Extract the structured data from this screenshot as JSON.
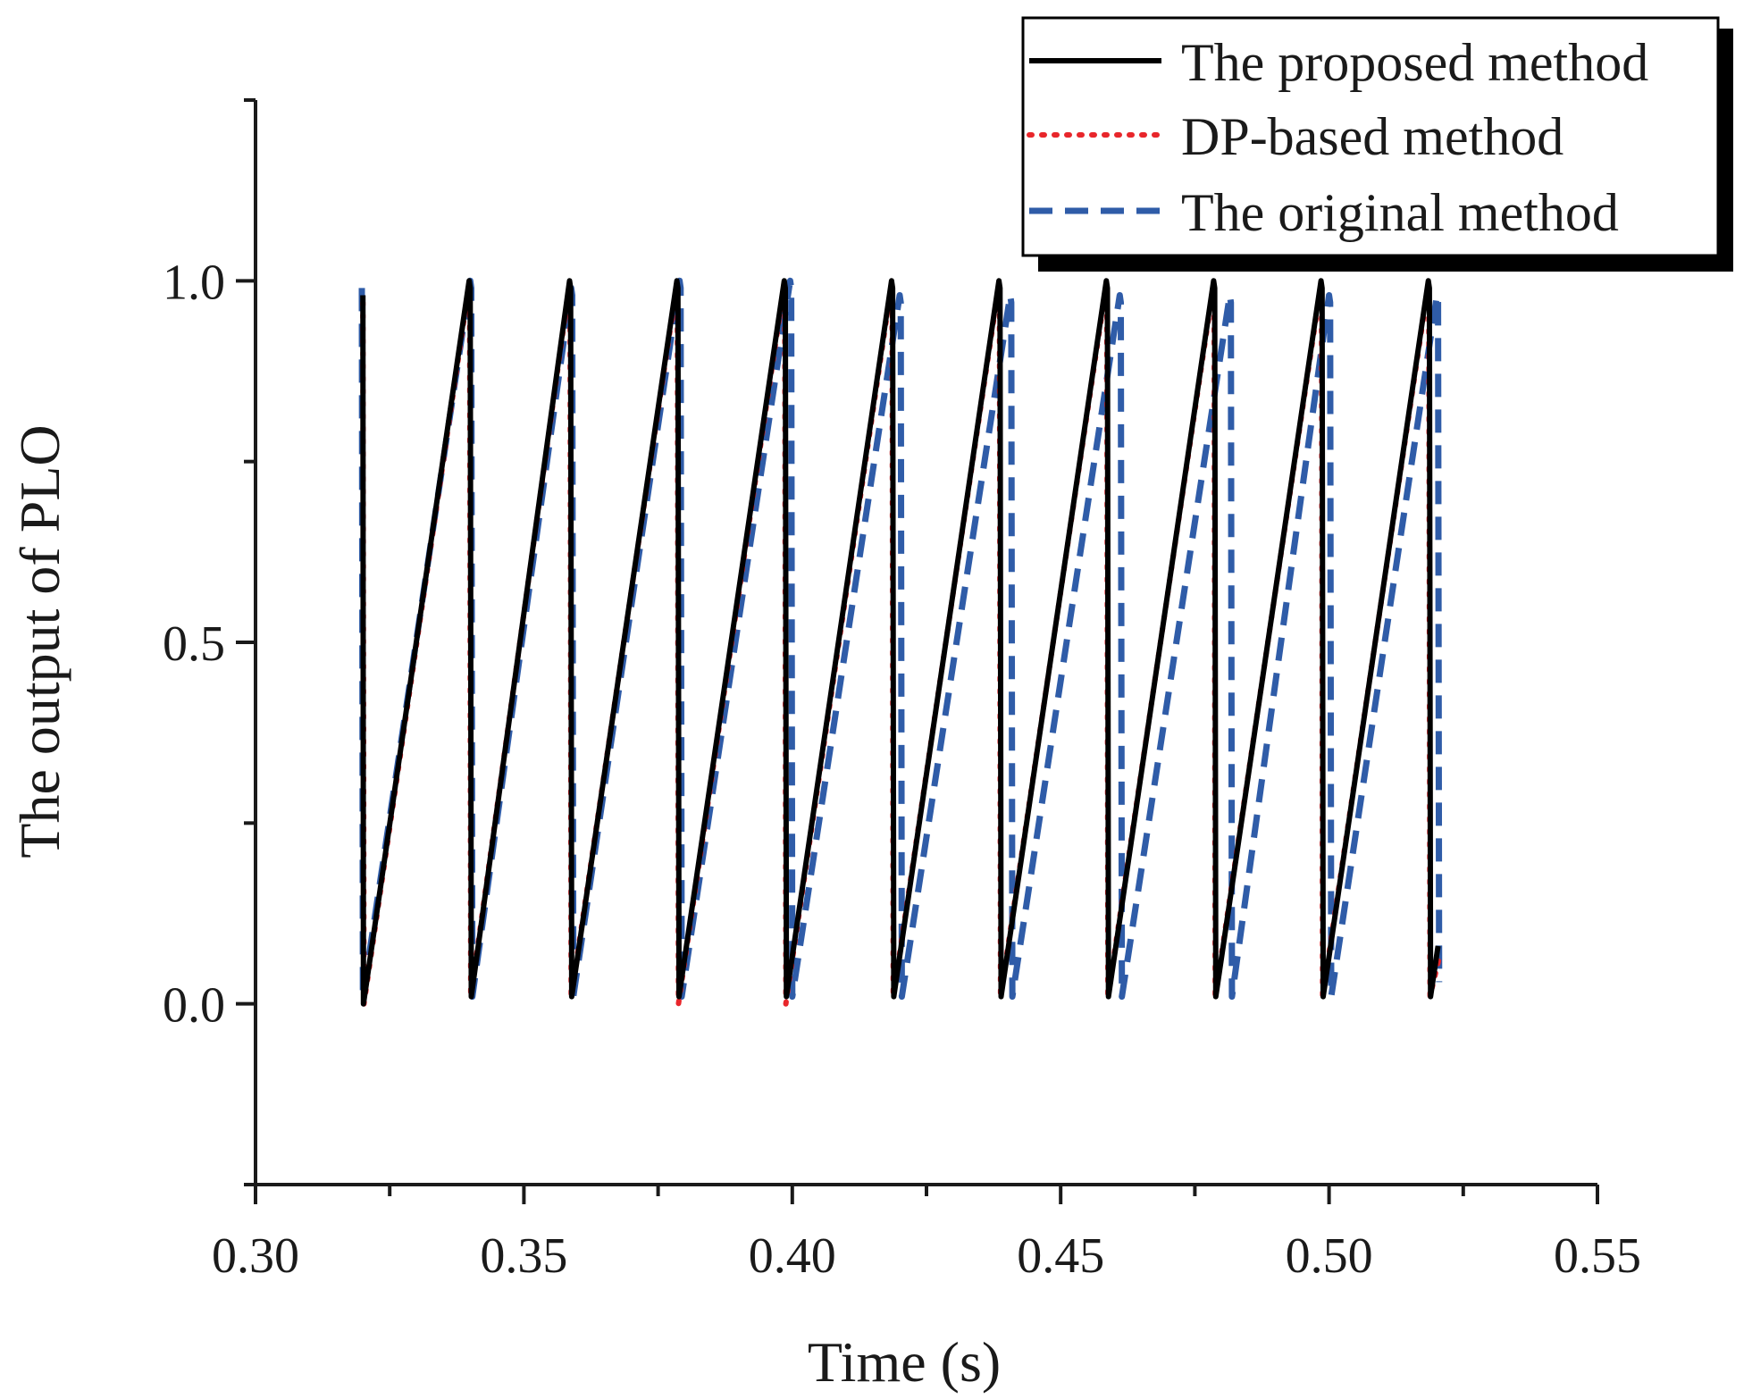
{
  "chart_data": {
    "type": "line",
    "title": "",
    "xlabel": "Time (s)",
    "ylabel": "The output of PLO",
    "xlim": [
      0.3,
      0.55
    ],
    "ylim": [
      -0.25,
      1.25
    ],
    "x_ticks": [
      0.3,
      0.35,
      0.4,
      0.45,
      0.5,
      0.55
    ],
    "x_tick_labels": [
      "0.30",
      "0.35",
      "0.40",
      "0.45",
      "0.50",
      "0.55"
    ],
    "x_minor_ticks": [
      0.325,
      0.375,
      0.425,
      0.475,
      0.525
    ],
    "y_ticks": [
      0.0,
      0.5,
      1.0
    ],
    "y_tick_labels": [
      "0.0",
      "0.5",
      "1.0"
    ],
    "y_minor_ticks": [
      -0.25,
      0.25,
      0.75,
      1.25
    ],
    "grid": false,
    "legend_position": "top-right",
    "series": [
      {
        "name": "The proposed method",
        "color": "#000000",
        "style": "solid",
        "x": [
          0.32,
          0.3201,
          0.3398,
          0.34,
          0.3402,
          0.3585,
          0.3587,
          0.3589,
          0.3785,
          0.3787,
          0.3789,
          0.3985,
          0.3987,
          0.3989,
          0.4185,
          0.4187,
          0.4189,
          0.4385,
          0.4387,
          0.4389,
          0.4585,
          0.4587,
          0.4589,
          0.4785,
          0.4787,
          0.4789,
          0.4985,
          0.4987,
          0.4989,
          0.5185,
          0.5187,
          0.5189,
          0.5203
        ],
        "y": [
          0.98,
          0.0,
          1.0,
          0.99,
          0.01,
          1.0,
          0.99,
          0.01,
          1.0,
          0.99,
          0.01,
          1.0,
          0.99,
          0.01,
          1.0,
          0.99,
          0.01,
          1.0,
          0.99,
          0.01,
          1.0,
          0.99,
          0.01,
          1.0,
          0.99,
          0.01,
          1.0,
          0.99,
          0.01,
          1.0,
          0.99,
          0.01,
          0.08
        ]
      },
      {
        "name": "DP-based method",
        "color": "#e8262b",
        "style": "dotted",
        "x": [
          0.32,
          0.3202,
          0.3397,
          0.3399,
          0.3401,
          0.3584,
          0.3586,
          0.3588,
          0.3784,
          0.3786,
          0.3788,
          0.3984,
          0.3986,
          0.3988,
          0.4184,
          0.4186,
          0.4188,
          0.4384,
          0.4386,
          0.4388,
          0.4584,
          0.4586,
          0.4588,
          0.4784,
          0.4786,
          0.4788,
          0.4984,
          0.4986,
          0.4988,
          0.5184,
          0.5186,
          0.5188,
          0.5204
        ],
        "y": [
          0.97,
          0.0,
          0.99,
          0.98,
          0.01,
          0.99,
          0.98,
          0.01,
          0.99,
          0.98,
          0.0,
          0.99,
          0.98,
          0.0,
          0.99,
          0.98,
          0.01,
          0.99,
          0.98,
          0.01,
          0.99,
          0.98,
          0.01,
          0.99,
          0.98,
          0.01,
          0.99,
          0.98,
          0.01,
          0.99,
          0.98,
          0.01,
          0.06
        ]
      },
      {
        "name": "The original method",
        "color": "#2f5ca8",
        "style": "dashed",
        "x": [
          0.3198,
          0.32,
          0.34,
          0.3402,
          0.3404,
          0.3588,
          0.359,
          0.3592,
          0.379,
          0.3792,
          0.3794,
          0.3996,
          0.3998,
          0.4,
          0.42,
          0.4202,
          0.4204,
          0.4406,
          0.4408,
          0.441,
          0.461,
          0.4612,
          0.4614,
          0.4815,
          0.4817,
          0.4819,
          0.5,
          0.5002,
          0.5004,
          0.5201,
          0.5203,
          0.5205
        ],
        "y": [
          0.99,
          0.01,
          1.0,
          0.99,
          0.01,
          0.99,
          0.98,
          0.01,
          1.0,
          0.99,
          0.01,
          1.0,
          0.99,
          0.01,
          0.98,
          0.97,
          0.01,
          0.98,
          0.97,
          0.01,
          0.98,
          0.97,
          0.01,
          0.98,
          0.97,
          0.01,
          0.98,
          0.97,
          0.01,
          0.98,
          0.97,
          0.03
        ]
      }
    ]
  }
}
